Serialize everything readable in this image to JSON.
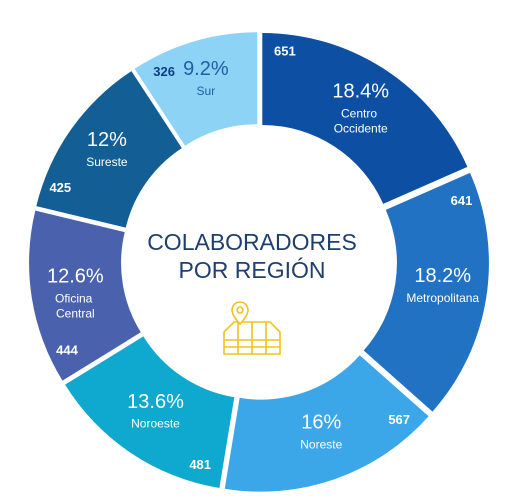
{
  "chart_data": {
    "type": "donut",
    "title": [
      "COLABORADORES",
      "POR REGIÓN"
    ],
    "categories": [
      "Centro Occidente",
      "Metropolitana",
      "Noreste",
      "Noroeste",
      "Oficina Central",
      "Sureste",
      "Sur"
    ],
    "values": [
      651,
      641,
      567,
      481,
      444,
      425,
      326
    ],
    "shares": [
      18.4,
      18.2,
      16,
      13.6,
      12.6,
      12,
      9.2
    ],
    "share_labels": [
      "18.4%",
      "18.2%",
      "16%",
      "13.6%",
      "12.6%",
      "12%",
      "9.2%"
    ],
    "colors": [
      "#0d4fa3",
      "#2272c3",
      "#3ba7e8",
      "#0fa9d0",
      "#4a62ad",
      "#135f95",
      "#8dd3f5"
    ],
    "label_colors": [
      "#ffffff",
      "#ffffff",
      "#ffffff",
      "#ffffff",
      "#ffffff",
      "#ffffff",
      "#1f5fa8"
    ],
    "count_colors": [
      "#ffffff",
      "#ffffff",
      "#ffffff",
      "#ffffff",
      "#ffffff",
      "#ffffff",
      "#0d3f85"
    ]
  }
}
